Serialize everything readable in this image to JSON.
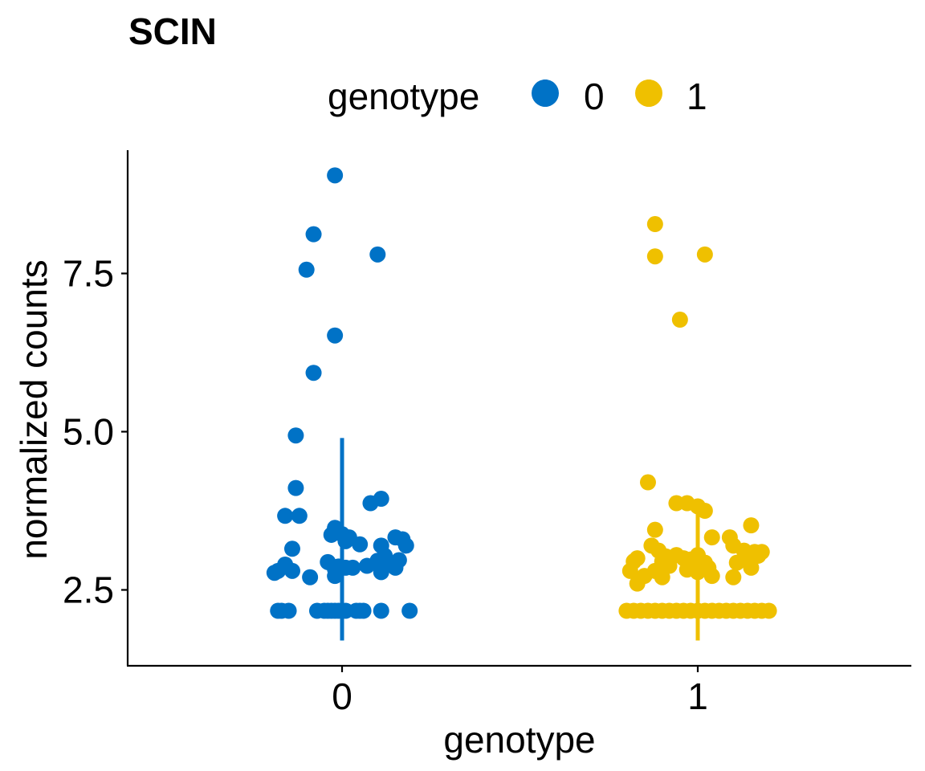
{
  "chart_data": {
    "type": "scatter",
    "title": "SCIN",
    "xlabel": "genotype",
    "ylabel": "normalized counts",
    "categories": [
      "0",
      "1"
    ],
    "ylim": [
      1.5,
      9.4
    ],
    "yticks": [
      "2.5",
      "5.0",
      "7.5"
    ],
    "grid": false,
    "legend": {
      "title": "genotype",
      "position": "top",
      "entries": [
        "0",
        "1"
      ]
    },
    "colors": {
      "0": "#0072C6",
      "1": "#EFC000"
    },
    "series": [
      {
        "group": "0",
        "range": [
          1.7,
          4.9
        ],
        "points": [
          [
            -0.02,
            9.05
          ],
          [
            -0.08,
            8.12
          ],
          [
            0.1,
            7.8
          ],
          [
            -0.1,
            7.56
          ],
          [
            -0.02,
            6.52
          ],
          [
            -0.08,
            5.93
          ],
          [
            -0.13,
            4.94
          ],
          [
            -0.13,
            4.11
          ],
          [
            -0.16,
            3.67
          ],
          [
            -0.12,
            3.67
          ],
          [
            -0.14,
            3.15
          ],
          [
            -0.02,
            3.48
          ],
          [
            0.0,
            3.38
          ],
          [
            0.02,
            3.33
          ],
          [
            0.01,
            3.27
          ],
          [
            -0.03,
            3.37
          ],
          [
            0.01,
            3.3
          ],
          [
            0.08,
            3.87
          ],
          [
            0.11,
            3.94
          ],
          [
            0.15,
            3.33
          ],
          [
            0.17,
            3.3
          ],
          [
            0.18,
            3.2
          ],
          [
            0.11,
            3.2
          ],
          [
            0.05,
            3.22
          ],
          [
            -0.04,
            2.94
          ],
          [
            -0.01,
            2.87
          ],
          [
            0.01,
            2.85
          ],
          [
            0.03,
            2.85
          ],
          [
            -0.02,
            2.83
          ],
          [
            0.07,
            2.88
          ],
          [
            0.1,
            2.96
          ],
          [
            0.12,
            3.04
          ],
          [
            0.14,
            2.9
          ],
          [
            0.11,
            2.78
          ],
          [
            0.15,
            2.85
          ],
          [
            0.16,
            2.97
          ],
          [
            -0.16,
            2.9
          ],
          [
            -0.18,
            2.8
          ],
          [
            -0.14,
            2.8
          ],
          [
            -0.19,
            2.77
          ],
          [
            -0.09,
            2.7
          ],
          [
            -0.02,
            2.72
          ],
          [
            -0.17,
            2.17
          ],
          [
            -0.18,
            2.17
          ],
          [
            -0.15,
            2.17
          ],
          [
            -0.07,
            2.17
          ],
          [
            -0.05,
            2.17
          ],
          [
            -0.04,
            2.17
          ],
          [
            -0.03,
            2.17
          ],
          [
            -0.02,
            2.17
          ],
          [
            -0.01,
            2.17
          ],
          [
            0.0,
            2.17
          ],
          [
            0.01,
            2.17
          ],
          [
            0.04,
            2.17
          ],
          [
            0.05,
            2.17
          ],
          [
            0.06,
            2.17
          ],
          [
            0.11,
            2.17
          ],
          [
            0.19,
            2.17
          ]
        ]
      },
      {
        "group": "1",
        "range": [
          1.7,
          3.8
        ],
        "points": [
          [
            -0.12,
            8.28
          ],
          [
            -0.12,
            7.77
          ],
          [
            0.02,
            7.8
          ],
          [
            -0.05,
            6.77
          ],
          [
            -0.14,
            4.2
          ],
          [
            -0.12,
            3.45
          ],
          [
            -0.06,
            3.87
          ],
          [
            -0.03,
            3.87
          ],
          [
            0.0,
            3.82
          ],
          [
            0.02,
            3.75
          ],
          [
            0.04,
            3.33
          ],
          [
            0.09,
            3.33
          ],
          [
            0.15,
            3.52
          ],
          [
            0.1,
            3.2
          ],
          [
            0.13,
            3.12
          ],
          [
            0.16,
            3.1
          ],
          [
            0.18,
            3.1
          ],
          [
            0.17,
            3.04
          ],
          [
            0.14,
            3.0
          ],
          [
            0.11,
            2.93
          ],
          [
            -0.13,
            3.2
          ],
          [
            -0.11,
            3.12
          ],
          [
            -0.09,
            3.03
          ],
          [
            -0.06,
            3.05
          ],
          [
            -0.04,
            3.0
          ],
          [
            0.0,
            3.05
          ],
          [
            -0.02,
            2.98
          ],
          [
            0.02,
            2.93
          ],
          [
            -0.01,
            2.88
          ],
          [
            -0.03,
            2.82
          ],
          [
            0.0,
            2.78
          ],
          [
            0.03,
            2.85
          ],
          [
            -0.08,
            2.88
          ],
          [
            -0.1,
            2.95
          ],
          [
            -0.12,
            2.8
          ],
          [
            -0.17,
            3.0
          ],
          [
            -0.18,
            2.95
          ],
          [
            -0.19,
            2.8
          ],
          [
            -0.15,
            2.72
          ],
          [
            -0.1,
            2.7
          ],
          [
            -0.17,
            2.6
          ],
          [
            0.04,
            2.72
          ],
          [
            0.1,
            2.7
          ],
          [
            0.15,
            2.85
          ],
          [
            -0.2,
            2.17
          ],
          [
            -0.18,
            2.17
          ],
          [
            -0.16,
            2.17
          ],
          [
            -0.14,
            2.17
          ],
          [
            -0.12,
            2.17
          ],
          [
            -0.1,
            2.17
          ],
          [
            -0.08,
            2.17
          ],
          [
            -0.06,
            2.17
          ],
          [
            -0.04,
            2.17
          ],
          [
            -0.02,
            2.17
          ],
          [
            0.0,
            2.17
          ],
          [
            0.02,
            2.17
          ],
          [
            0.04,
            2.17
          ],
          [
            0.06,
            2.17
          ],
          [
            0.08,
            2.17
          ],
          [
            0.1,
            2.17
          ],
          [
            0.12,
            2.17
          ],
          [
            0.14,
            2.17
          ],
          [
            0.16,
            2.17
          ],
          [
            0.18,
            2.17
          ],
          [
            0.2,
            2.17
          ]
        ]
      }
    ]
  }
}
